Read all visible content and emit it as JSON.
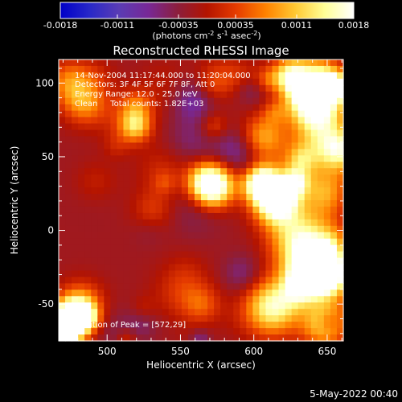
{
  "chart_data": {
    "type": "heatmap",
    "title": "Reconstructed RHESSI Image",
    "xlabel": "Heliocentric X (arcsec)",
    "ylabel": "Heliocentric Y (arcsec)",
    "xlim": [
      467,
      661
    ],
    "ylim": [
      -75,
      116
    ],
    "x_ticks": [
      500,
      550,
      600,
      650
    ],
    "y_ticks": [
      -50,
      0,
      50,
      100
    ],
    "colorbar": {
      "label_prefix": "(photons cm",
      "label_sup1": "-2",
      "label_mid": " s",
      "label_sup2": "-1",
      "label_mid2": " asec",
      "label_sup3": "-2",
      "label_suffix": ")",
      "range": [
        -0.0018,
        0.0018
      ],
      "ticks": [
        "-0.0018",
        "-0.0011",
        "-0.00035",
        "0.00035",
        "0.0011",
        "0.0018"
      ],
      "tick_values": [
        -0.0018,
        -0.0011,
        -0.00035,
        0.00035,
        0.0011,
        0.0018
      ],
      "colormap": [
        "#0000c8",
        "#2828c8",
        "#5a3cb4",
        "#782896",
        "#8c1e3c",
        "#b41400",
        "#e63c00",
        "#ff8200",
        "#ffc832",
        "#ffff96",
        "#ffffff"
      ]
    },
    "peak": {
      "x": 572,
      "y": 29
    },
    "annotations": {
      "time": "14-Nov-2004 11:17:44.000 to 11:20:04.000",
      "detectors": "Detectors: 3F 4F 5F 6F 7F 8F, Att 0",
      "energy": "Energy Range: 12.0 - 25.0 keV",
      "clean": "Clean     Total counts: 1.82E+03",
      "peak": "Position of Peak = [572,29]"
    }
  },
  "footer": {
    "date": "5-May-2022 00:40"
  }
}
